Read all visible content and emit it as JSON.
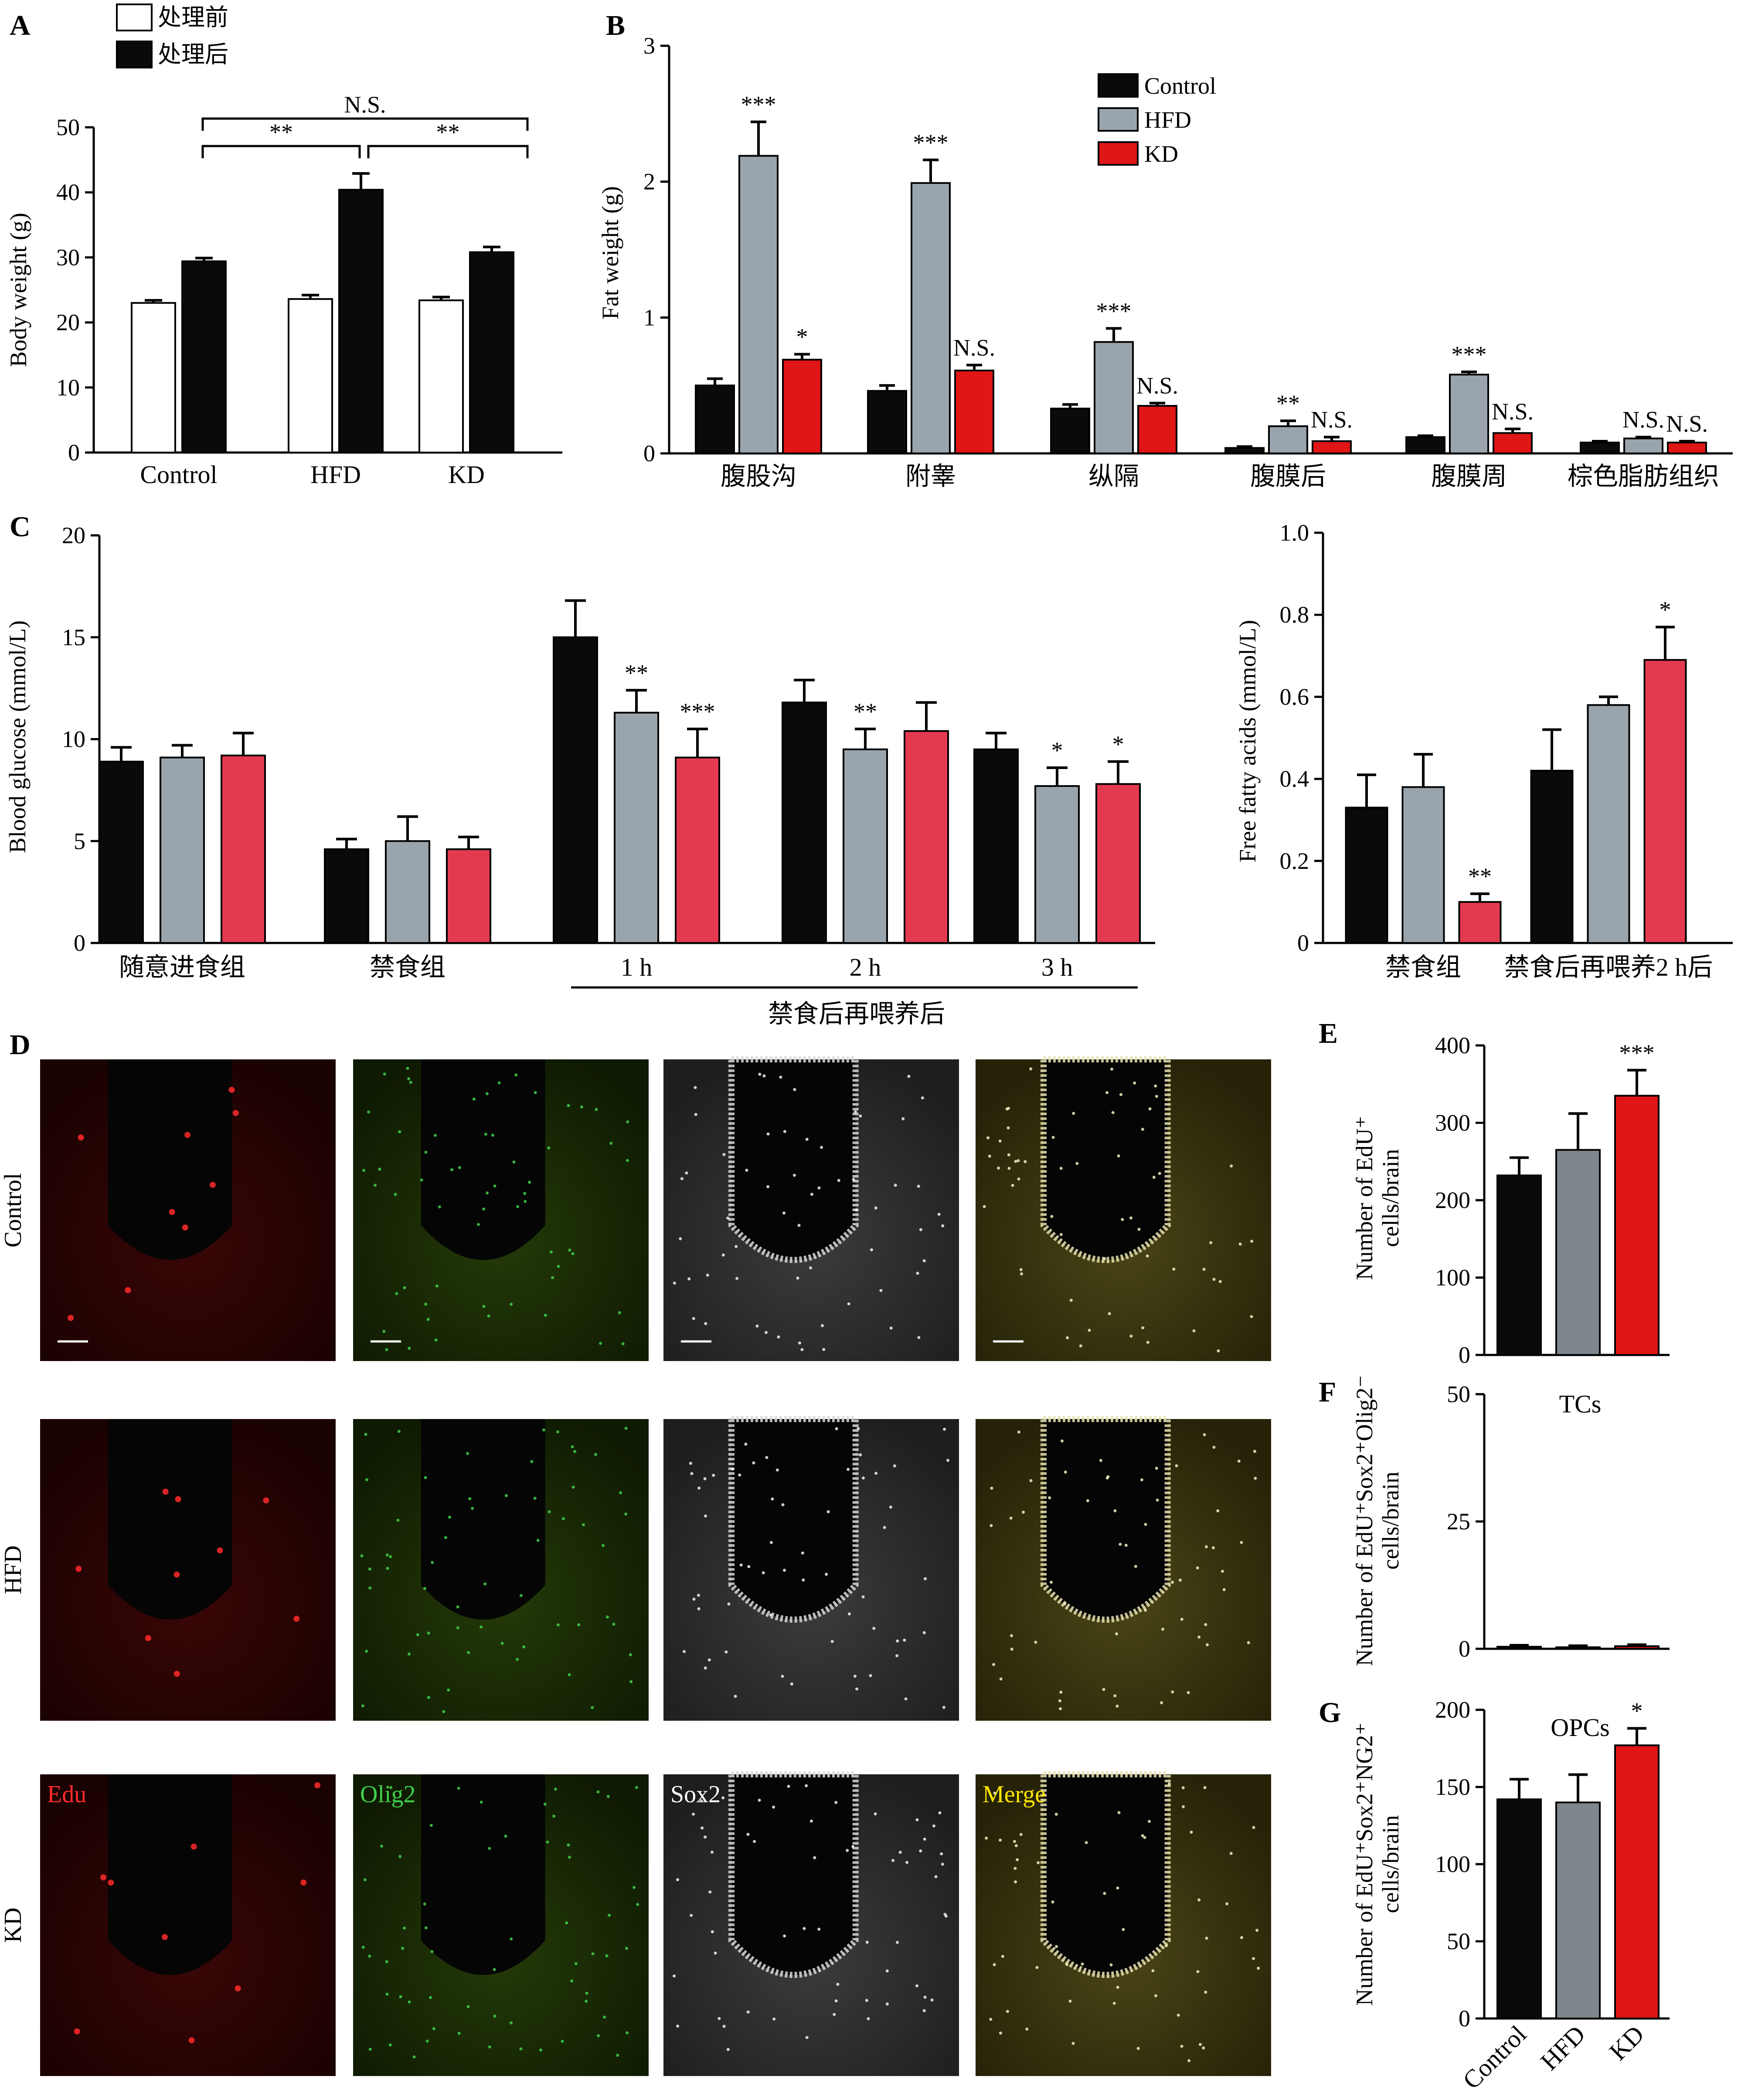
{
  "colors": {
    "black": "#0a0a0a",
    "gray": "#9aa4ad",
    "red_bright": "#e01515",
    "red_pink": "#e43a4f",
    "white": "#ffffff",
    "gray_dark": "#7e878c"
  },
  "chart_data": [
    {
      "id": "A",
      "type": "bar",
      "panel": "A",
      "categories": [
        "Control",
        "HFD",
        "KD"
      ],
      "series": [
        {
          "name": "处理前",
          "values": [
            23,
            23.6,
            23.4
          ],
          "errors": [
            0.4,
            0.6,
            0.5
          ]
        },
        {
          "name": "处理后",
          "values": [
            29.4,
            40.4,
            30.8
          ],
          "errors": [
            0.5,
            2.5,
            0.8
          ]
        }
      ],
      "ylabel": "Body weight (g)",
      "ylim": [
        0,
        50
      ],
      "yticks": [
        0,
        10,
        20,
        30,
        40,
        50
      ],
      "legend_position": "top-left",
      "comparisons": [
        {
          "label": "N.S.",
          "from": "Control",
          "to": "KD"
        },
        {
          "label": "**",
          "from": "Control",
          "to": "HFD"
        },
        {
          "label": "**",
          "from": "HFD",
          "to": "KD"
        }
      ]
    },
    {
      "id": "B",
      "type": "bar",
      "panel": "B",
      "categories": [
        "腹股沟",
        "附睾",
        "纵隔",
        "腹膜后",
        "腹膜周",
        "棕色脂肪组织"
      ],
      "series": [
        {
          "name": "Control",
          "values": [
            0.5,
            0.46,
            0.33,
            0.04,
            0.12,
            0.08
          ],
          "errors": [
            0.05,
            0.04,
            0.03,
            0.01,
            0.01,
            0.01
          ],
          "sig": [
            "",
            "",
            "",
            "",
            "",
            ""
          ]
        },
        {
          "name": "HFD",
          "values": [
            2.19,
            1.99,
            0.82,
            0.2,
            0.58,
            0.11
          ],
          "errors": [
            0.25,
            0.17,
            0.1,
            0.04,
            0.02,
            0.01
          ],
          "sig": [
            "***",
            "***",
            "***",
            "**",
            "***",
            "N.S."
          ]
        },
        {
          "name": "KD",
          "values": [
            0.69,
            0.61,
            0.35,
            0.09,
            0.15,
            0.08
          ],
          "errors": [
            0.04,
            0.04,
            0.02,
            0.03,
            0.03,
            0.01
          ],
          "sig": [
            "*",
            "N.S.",
            "N.S.",
            "N.S.",
            "N.S.",
            "N.S."
          ]
        }
      ],
      "ylabel": "Fat weight (g)",
      "ylim": [
        0,
        3
      ],
      "yticks": [
        0,
        1,
        2,
        3
      ],
      "legend_position": "top-center"
    },
    {
      "id": "C1",
      "type": "bar",
      "panel": "C",
      "categories": [
        "随意进食组",
        "禁食组",
        "1 h",
        "2 h",
        "3 h"
      ],
      "group_label": "禁食后再喂养后",
      "series": [
        {
          "name": "Control",
          "values": [
            8.9,
            4.6,
            15.0,
            11.8,
            9.5
          ],
          "errors": [
            0.7,
            0.5,
            1.8,
            1.1,
            0.8
          ],
          "sig": [
            "",
            "",
            "",
            "",
            ""
          ]
        },
        {
          "name": "HFD",
          "values": [
            9.1,
            5.0,
            11.3,
            9.5,
            7.7
          ],
          "errors": [
            0.6,
            1.2,
            1.1,
            1.0,
            0.9
          ],
          "sig": [
            "",
            "",
            "**",
            "**",
            "*"
          ]
        },
        {
          "name": "KD",
          "values": [
            9.2,
            4.6,
            9.1,
            10.4,
            7.8
          ],
          "errors": [
            1.1,
            0.6,
            1.4,
            1.4,
            1.1
          ],
          "sig": [
            "",
            "",
            "***",
            "",
            "*"
          ]
        }
      ],
      "ylabel": "Blood glucose (mmol/L)",
      "ylim": [
        0,
        20
      ],
      "yticks": [
        0,
        5,
        10,
        15,
        20
      ]
    },
    {
      "id": "C2",
      "type": "bar",
      "panel": "C",
      "categories": [
        "禁食组",
        "禁食后再喂养2 h后"
      ],
      "series": [
        {
          "name": "Control",
          "values": [
            0.33,
            0.42
          ],
          "errors": [
            0.08,
            0.1
          ],
          "sig": [
            "",
            ""
          ]
        },
        {
          "name": "HFD",
          "values": [
            0.38,
            0.58
          ],
          "errors": [
            0.08,
            0.02
          ],
          "sig": [
            "",
            ""
          ]
        },
        {
          "name": "KD",
          "values": [
            0.1,
            0.69
          ],
          "errors": [
            0.02,
            0.08
          ],
          "sig": [
            "**",
            "*"
          ]
        }
      ],
      "ylabel": "Free fatty acids (mmol/L)",
      "ylim": [
        0,
        1.0
      ],
      "yticks": [
        0,
        0.2,
        0.4,
        0.6,
        0.8,
        1.0
      ]
    },
    {
      "id": "E",
      "type": "bar",
      "panel": "E",
      "categories": [
        "Control",
        "HFD",
        "KD"
      ],
      "values": [
        232,
        265,
        335
      ],
      "errors": [
        23,
        47,
        33
      ],
      "sig": [
        "",
        "",
        "***"
      ],
      "ylabel_line1": "Number of EdU⁺",
      "ylabel_line2": "cells/brain",
      "ylim": [
        0,
        400
      ],
      "yticks": [
        0,
        100,
        200,
        300,
        400
      ]
    },
    {
      "id": "F",
      "type": "bar",
      "panel": "F",
      "title": "TCs",
      "categories": [
        "Control",
        "HFD",
        "KD"
      ],
      "values": [
        0.4,
        0.3,
        0.5
      ],
      "errors": [
        0.3,
        0.3,
        0.3
      ],
      "sig": [
        "",
        "",
        ""
      ],
      "ylabel_line1": "Number of EdU⁺Sox2⁺Olig2⁻",
      "ylabel_line2": "cells/brain",
      "ylim": [
        0,
        50
      ],
      "yticks": [
        0,
        25,
        50
      ]
    },
    {
      "id": "G",
      "type": "bar",
      "panel": "G",
      "title": "OPCs",
      "categories": [
        "Control",
        "HFD",
        "KD"
      ],
      "values": [
        142,
        140,
        177
      ],
      "errors": [
        13,
        18,
        11
      ],
      "sig": [
        "",
        "",
        "*"
      ],
      "ylabel_line1": "Number of EdU⁺Sox2⁺NG2⁺",
      "ylabel_line2": "cells/brain",
      "ylim": [
        0,
        200
      ],
      "yticks": [
        0,
        50,
        100,
        150,
        200
      ]
    }
  ],
  "panel_d": {
    "letter": "D",
    "rows": [
      "Control",
      "HFD",
      "KD"
    ],
    "channels": [
      "Edu",
      "Olig2",
      "Sox2",
      "Merge"
    ]
  }
}
